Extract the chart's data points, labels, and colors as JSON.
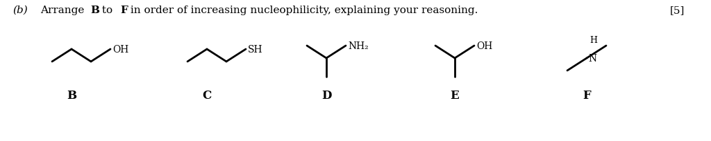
{
  "background_color": "#ffffff",
  "text_color": "#000000",
  "lw": 2.0,
  "fs_mol": 10,
  "fs_label": 12,
  "fs_title": 11,
  "title_prefix": "(b)",
  "title_main": "Arrange  to  in order of increasing nucleophilicity, explaining your reasoning.",
  "title_B": "B",
  "title_F": "F",
  "title_bracket": "[5]",
  "label_B": "B",
  "label_C": "C",
  "label_D": "D",
  "label_E": "E",
  "label_F": "F"
}
